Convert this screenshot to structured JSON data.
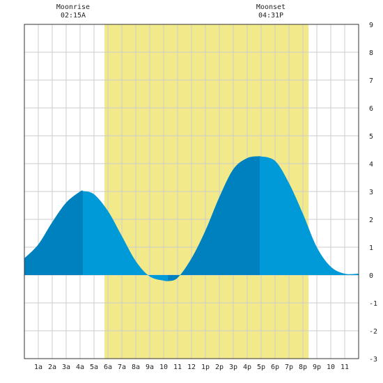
{
  "header": {
    "moonrise_label": "Moonrise",
    "moonrise_time": "02:15A",
    "moonset_label": "Moonset",
    "moonset_time": "04:31P"
  },
  "chart_data": {
    "type": "area",
    "title": "",
    "xlabel": "",
    "ylabel": "",
    "xlim": [
      0,
      24
    ],
    "ylim": [
      -3,
      9
    ],
    "y_ticks": [
      9,
      8,
      7,
      6,
      5,
      4,
      3,
      2,
      1,
      0,
      -1,
      -2,
      -3
    ],
    "x_tick_labels": [
      "1a",
      "2a",
      "3a",
      "4a",
      "5a",
      "6a",
      "7a",
      "8a",
      "9a",
      "10",
      "11",
      "12",
      "1p",
      "2p",
      "3p",
      "4p",
      "5p",
      "6p",
      "7p",
      "8p",
      "9p",
      "10",
      "11"
    ],
    "daylight_hours": [
      5.75,
      20.4
    ],
    "grid": true,
    "colors": {
      "daylight": "#f2ea8a",
      "rising": "#0081bf",
      "falling": "#009ad9",
      "grid": "#cccccc",
      "border": "#333333"
    },
    "series": [
      {
        "x": [
          0,
          1,
          2,
          3,
          4,
          4.2,
          5,
          6,
          7,
          8,
          9,
          10,
          10.3,
          11,
          12,
          13,
          14,
          15,
          16,
          16.9,
          18,
          19,
          20,
          21,
          22,
          23,
          24
        ],
        "y": [
          0.6,
          1.1,
          1.9,
          2.6,
          3.0,
          3.02,
          2.9,
          2.3,
          1.4,
          0.5,
          -0.05,
          -0.2,
          -0.22,
          -0.1,
          0.6,
          1.6,
          2.8,
          3.8,
          4.2,
          4.27,
          4.1,
          3.3,
          2.2,
          1.0,
          0.3,
          0.05,
          0.05
        ]
      }
    ]
  }
}
